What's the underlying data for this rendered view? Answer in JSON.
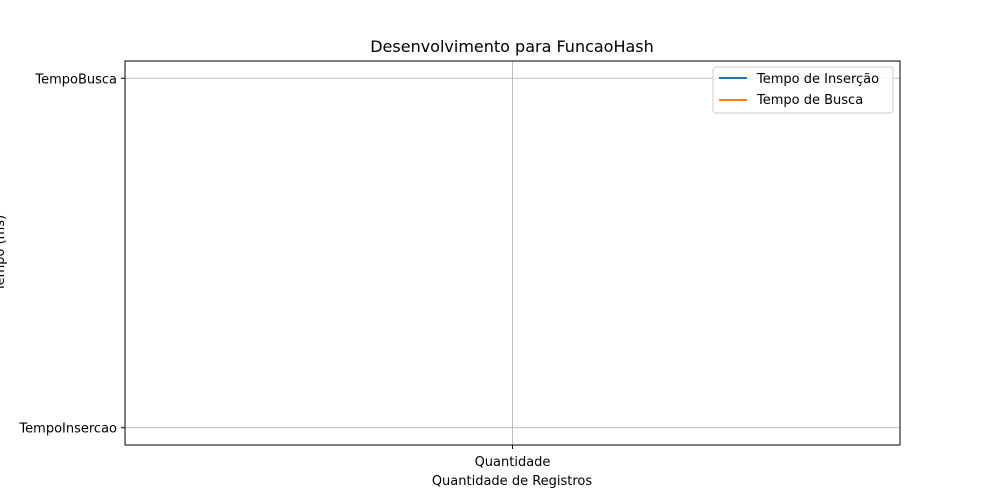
{
  "chart_data": {
    "type": "line",
    "title": "Desenvolvimento para FuncaoHash",
    "xlabel": "Quantidade de Registros",
    "ylabel": "Tempo (ms)",
    "x_categories": [
      "Quantidade"
    ],
    "y_categories": [
      "TempoInsercao",
      "TempoBusca"
    ],
    "grid": true,
    "legend_position": "top-right",
    "series": [
      {
        "name": "Tempo de Inserção",
        "color": "#1f77b4",
        "points": [
          {
            "x": "Quantidade",
            "y": "TempoInsercao"
          }
        ]
      },
      {
        "name": "Tempo de Busca",
        "color": "#ff7f0e",
        "points": [
          {
            "x": "Quantidade",
            "y": "TempoBusca"
          }
        ]
      }
    ]
  }
}
